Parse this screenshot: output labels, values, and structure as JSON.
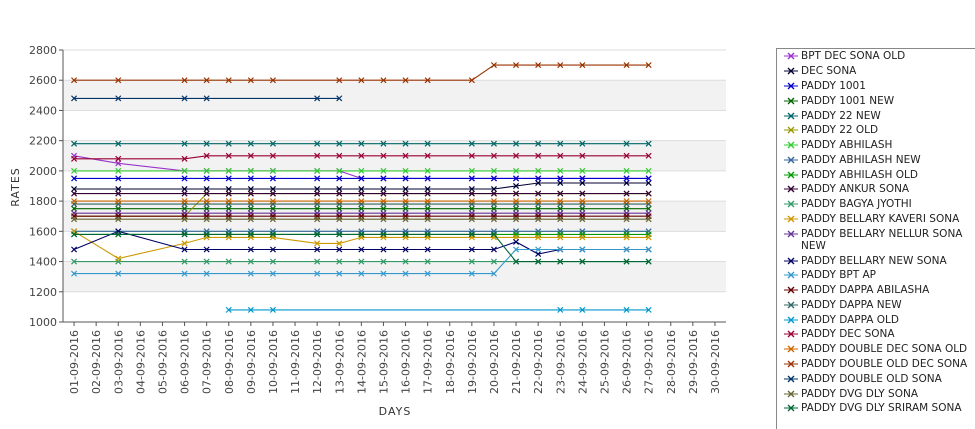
{
  "chart_data": {
    "type": "line",
    "title": "",
    "xlabel": "DAYS",
    "ylabel": "RATES",
    "ylim": [
      1000,
      2800
    ],
    "yticks": [
      1000,
      1200,
      1400,
      1600,
      1800,
      2000,
      2200,
      2400,
      2600,
      2800
    ],
    "grid": "alternating horizontal bands",
    "legend_position": "right",
    "x": [
      "01-09-2016",
      "02-09-2016",
      "03-09-2016",
      "04-09-2016",
      "05-09-2016",
      "06-09-2016",
      "07-09-2016",
      "08-09-2016",
      "09-09-2016",
      "10-09-2016",
      "11-09-2016",
      "12-09-2016",
      "13-09-2016",
      "14-09-2016",
      "15-09-2016",
      "16-09-2016",
      "17-09-2016",
      "18-09-2016",
      "19-09-2016",
      "20-09-2016",
      "21-09-2016",
      "22-09-2016",
      "23-09-2016",
      "24-09-2016",
      "25-09-2016",
      "26-09-2016",
      "27-09-2016",
      "28-09-2016",
      "29-09-2016",
      "30-09-2016"
    ],
    "series": [
      {
        "name": "BPT DEC SONA OLD",
        "color": "#9933cc",
        "values": [
          2100,
          null,
          2050,
          null,
          null,
          2000,
          2000,
          2000,
          2000,
          2000,
          null,
          2000,
          2000,
          1950,
          1950,
          1950,
          1950,
          null,
          1950,
          1950,
          1950,
          1950,
          1950,
          1950,
          null,
          1950,
          1950,
          null,
          null,
          null
        ]
      },
      {
        "name": "DEC SONA",
        "color": "#000033",
        "values": [
          1880,
          null,
          1880,
          null,
          null,
          1880,
          1880,
          1880,
          1880,
          1880,
          null,
          1880,
          1880,
          1880,
          1880,
          1880,
          1880,
          null,
          1880,
          1880,
          1900,
          1920,
          1920,
          1920,
          null,
          1920,
          1920,
          null,
          null,
          null
        ]
      },
      {
        "name": "PADDY 1001",
        "color": "#0000cc",
        "values": [
          1950,
          null,
          1950,
          null,
          null,
          1950,
          1950,
          1950,
          1950,
          1950,
          null,
          1950,
          1950,
          1950,
          1950,
          1950,
          1950,
          null,
          1950,
          1950,
          1950,
          1950,
          1950,
          1950,
          null,
          1950,
          1950,
          null,
          null,
          null
        ]
      },
      {
        "name": "PADDY 1001 NEW",
        "color": "#006600",
        "values": [
          1750,
          null,
          1750,
          null,
          null,
          1750,
          1750,
          1750,
          1750,
          1750,
          null,
          1750,
          1750,
          1750,
          1750,
          1750,
          1750,
          null,
          1750,
          1750,
          1750,
          1750,
          1750,
          1750,
          null,
          1750,
          1750,
          null,
          null,
          null
        ]
      },
      {
        "name": "PADDY 22 NEW",
        "color": "#006666",
        "values": [
          2180,
          null,
          2180,
          null,
          null,
          2180,
          2180,
          2180,
          2180,
          2180,
          null,
          2180,
          2180,
          2180,
          2180,
          2180,
          2180,
          null,
          2180,
          2180,
          2180,
          2180,
          2180,
          2180,
          null,
          2180,
          2180,
          null,
          null,
          null
        ]
      },
      {
        "name": "PADDY 22 OLD",
        "color": "#999900",
        "values": [
          1700,
          null,
          1700,
          null,
          null,
          1700,
          1850,
          1850,
          1850,
          1850,
          null,
          1850,
          1850,
          1850,
          1850,
          1850,
          1850,
          null,
          1850,
          1850,
          1850,
          1850,
          1850,
          1850,
          null,
          1850,
          1850,
          null,
          null,
          null
        ]
      },
      {
        "name": "PADDY ABHILASH",
        "color": "#33cc33",
        "values": [
          2000,
          null,
          2000,
          null,
          null,
          2000,
          2000,
          2000,
          2000,
          2000,
          null,
          2000,
          2000,
          2000,
          2000,
          2000,
          2000,
          null,
          2000,
          2000,
          2000,
          2000,
          2000,
          2000,
          null,
          2000,
          2000,
          null,
          null,
          null
        ]
      },
      {
        "name": "PADDY ABHILASH NEW",
        "color": "#336699",
        "values": [
          1600,
          null,
          1600,
          null,
          null,
          1600,
          1600,
          1600,
          1600,
          1600,
          null,
          1600,
          1600,
          1600,
          1600,
          1600,
          1600,
          null,
          1600,
          1600,
          1600,
          1600,
          1600,
          1600,
          null,
          1600,
          1600,
          null,
          null,
          null
        ]
      },
      {
        "name": "PADDY ABHILASH OLD",
        "color": "#009900",
        "values": [
          1580,
          null,
          1580,
          null,
          null,
          1580,
          1580,
          1580,
          1580,
          1580,
          null,
          1580,
          1580,
          1580,
          1580,
          1580,
          1580,
          null,
          1580,
          1580,
          1580,
          1580,
          1580,
          1580,
          null,
          1580,
          1580,
          null,
          null,
          null
        ]
      },
      {
        "name": "PADDY ANKUR SONA",
        "color": "#330033",
        "values": [
          1850,
          null,
          1850,
          null,
          null,
          1850,
          1850,
          1850,
          1850,
          1850,
          null,
          1850,
          1850,
          1850,
          1850,
          1850,
          1850,
          null,
          1850,
          1850,
          1850,
          1850,
          1850,
          1850,
          null,
          1850,
          1850,
          null,
          null,
          null
        ]
      },
      {
        "name": "PADDY BAGYA JYOTHI",
        "color": "#339966",
        "values": [
          1400,
          null,
          1400,
          null,
          null,
          1400,
          1400,
          1400,
          1400,
          1400,
          null,
          1400,
          1400,
          1400,
          1400,
          1400,
          1400,
          null,
          1400,
          1400,
          1400,
          1400,
          1400,
          1400,
          null,
          1400,
          1400,
          null,
          null,
          null
        ]
      },
      {
        "name": "PADDY BELLARY KAVERI SONA",
        "color": "#cc9900",
        "values": [
          1600,
          null,
          1420,
          null,
          null,
          1520,
          1560,
          1560,
          1560,
          1560,
          null,
          1520,
          1520,
          1560,
          1560,
          1560,
          1560,
          null,
          1560,
          1560,
          1560,
          1560,
          1560,
          1560,
          null,
          1560,
          1560,
          null,
          null,
          null
        ]
      },
      {
        "name": "PADDY BELLARY NELLUR SONA NEW",
        "color": "#663399",
        "values": [
          1720,
          null,
          1720,
          null,
          null,
          1720,
          1720,
          1720,
          1720,
          1720,
          null,
          1720,
          1720,
          1720,
          1720,
          1720,
          1720,
          null,
          1720,
          1720,
          1720,
          1720,
          1720,
          1720,
          null,
          1720,
          1720,
          null,
          null,
          null
        ]
      },
      {
        "name": "PADDY BELLARY NEW SONA",
        "color": "#000066",
        "values": [
          1480,
          null,
          1600,
          null,
          null,
          1480,
          1480,
          null,
          1480,
          1480,
          null,
          1480,
          1480,
          1480,
          1480,
          1480,
          1480,
          null,
          1480,
          1480,
          1530,
          1450,
          1480,
          1480,
          null,
          1480,
          1480,
          null,
          null,
          null
        ]
      },
      {
        "name": "PADDY BPT AP",
        "color": "#3399cc",
        "values": [
          1320,
          null,
          1320,
          null,
          null,
          1320,
          1320,
          null,
          1320,
          1320,
          null,
          1320,
          1320,
          1320,
          1320,
          1320,
          1320,
          null,
          1320,
          1320,
          1480,
          1480,
          1480,
          1480,
          null,
          1480,
          1480,
          null,
          null,
          null
        ]
      },
      {
        "name": "PADDY DAPPA ABILASHA",
        "color": "#660000",
        "values": [
          1700,
          null,
          1700,
          null,
          null,
          1700,
          1700,
          1700,
          1700,
          1700,
          null,
          1700,
          1700,
          1700,
          1700,
          1700,
          1700,
          null,
          1700,
          1700,
          1700,
          1700,
          1700,
          1700,
          null,
          1700,
          1700,
          null,
          null,
          null
        ]
      },
      {
        "name": "PADDY DAPPA NEW",
        "color": "#336666",
        "values": [
          1780,
          null,
          1780,
          null,
          null,
          1780,
          1780,
          1780,
          1780,
          1780,
          null,
          1780,
          1780,
          1780,
          1780,
          1780,
          1780,
          null,
          1780,
          1780,
          1780,
          1780,
          1780,
          1780,
          null,
          1780,
          1780,
          null,
          null,
          null
        ]
      },
      {
        "name": "PADDY DAPPA OLD",
        "color": "#0099cc",
        "values": [
          null,
          null,
          null,
          null,
          null,
          null,
          null,
          1080,
          1080,
          1080,
          null,
          null,
          null,
          null,
          null,
          null,
          null,
          null,
          null,
          null,
          null,
          null,
          1080,
          1080,
          null,
          1080,
          1080,
          null,
          null,
          null
        ]
      },
      {
        "name": "PADDY DEC SONA",
        "color": "#990033",
        "values": [
          2080,
          null,
          2080,
          null,
          null,
          2080,
          2100,
          2100,
          2100,
          2100,
          null,
          2100,
          2100,
          2100,
          2100,
          2100,
          2100,
          null,
          2100,
          2100,
          2100,
          2100,
          2100,
          2100,
          null,
          2100,
          2100,
          null,
          null,
          null
        ]
      },
      {
        "name": "PADDY DOUBLE DEC SONA OLD",
        "color": "#cc6600",
        "values": [
          1800,
          null,
          1800,
          null,
          null,
          1800,
          1800,
          1800,
          1800,
          1800,
          null,
          1800,
          1800,
          1800,
          1800,
          1800,
          1800,
          null,
          1800,
          1800,
          1800,
          1800,
          1800,
          1800,
          null,
          1800,
          1800,
          null,
          null,
          null
        ]
      },
      {
        "name": "PADDY DOUBLE OLD DEC SONA",
        "color": "#993300",
        "values": [
          2600,
          null,
          2600,
          null,
          null,
          2600,
          2600,
          2600,
          2600,
          2600,
          null,
          null,
          2600,
          2600,
          2600,
          2600,
          2600,
          null,
          2600,
          2700,
          2700,
          2700,
          2700,
          2700,
          null,
          2700,
          2700,
          null,
          null,
          null
        ]
      },
      {
        "name": "PADDY DOUBLE OLD SONA",
        "color": "#003366",
        "values": [
          2480,
          null,
          2480,
          null,
          null,
          2480,
          2480,
          null,
          null,
          null,
          null,
          2480,
          2480,
          null,
          null,
          null,
          null,
          null,
          null,
          null,
          null,
          null,
          null,
          null,
          null,
          null,
          null,
          null,
          null,
          null
        ]
      },
      {
        "name": "PADDY DVG DLY SONA",
        "color": "#666633",
        "values": [
          1680,
          null,
          1680,
          null,
          null,
          1680,
          1680,
          1680,
          1680,
          1680,
          null,
          1680,
          1680,
          1680,
          1680,
          1680,
          1680,
          null,
          1680,
          1680,
          1680,
          1680,
          1680,
          1680,
          null,
          1680,
          1680,
          null,
          null,
          null
        ]
      },
      {
        "name": "PADDY DVG DLY SRIRAM SONA",
        "color": "#006633",
        "values": [
          1580,
          null,
          1580,
          null,
          null,
          1580,
          1580,
          1580,
          1580,
          1580,
          null,
          1580,
          1580,
          1580,
          1580,
          1580,
          1580,
          null,
          1580,
          1580,
          1400,
          1400,
          1400,
          1400,
          null,
          1400,
          1400,
          null,
          null,
          null
        ]
      }
    ]
  }
}
